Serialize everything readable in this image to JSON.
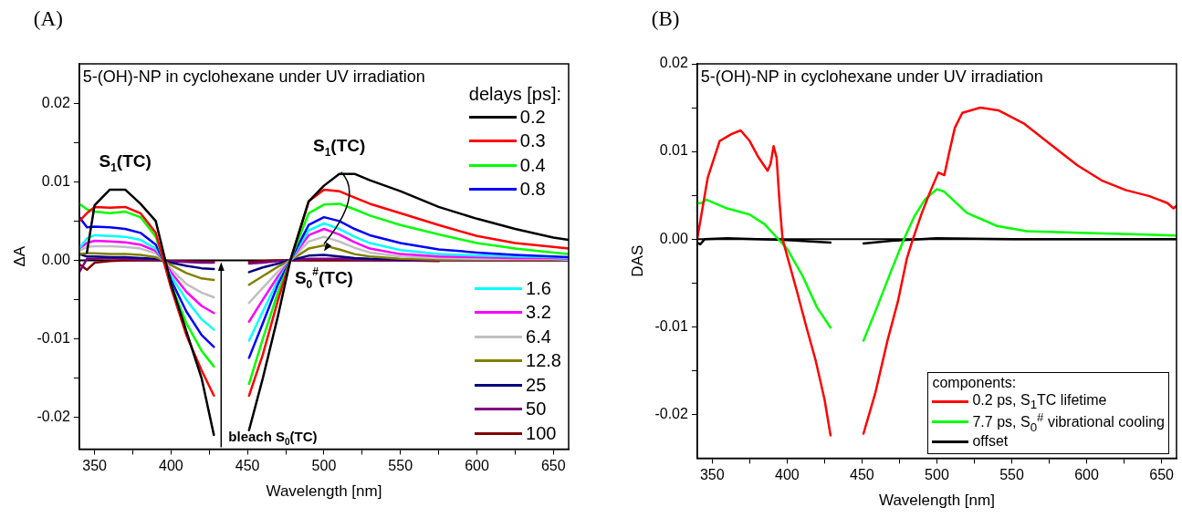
{
  "chart_data": [
    {
      "type": "line",
      "title": "(A)",
      "subtitle": "5-(OH)-NP in cyclohexane under UV irradiation",
      "xlabel": "Wavelength [nm]",
      "ylabel": "ΔA",
      "legend_title": "delays [ps]:",
      "legend": "right",
      "grid": false,
      "xlim": [
        340,
        660
      ],
      "ylim": [
        -0.024,
        0.025
      ],
      "xticks": [
        350,
        {
          "value": 375,
          "label": null
        },
        400,
        {
          "value": 425,
          "label": null
        },
        450,
        {
          "value": 475,
          "label": null
        },
        500,
        {
          "value": 525,
          "label": null
        },
        550,
        {
          "value": 575,
          "label": null
        },
        600,
        {
          "value": 625,
          "label": null
        },
        650
      ],
      "yticks": [
        -0.02,
        {
          "value": -0.015,
          "label": null
        },
        -0.01,
        {
          "value": -0.005,
          "label": null
        },
        {
          "value": 0,
          "label": "0.00"
        },
        {
          "value": 0.005,
          "label": null
        },
        0.01,
        {
          "value": 0.015,
          "label": null
        },
        0.02
      ],
      "ref_lines": [
        {
          "axis": "y",
          "value": 0,
          "color": "#000000"
        }
      ],
      "annotations": [
        {
          "text": "S$_{1}$(TC)",
          "x": 370,
          "y": 0.009
        },
        {
          "text": "S$_{1}$(TC)",
          "x": 510,
          "y": 0.011
        },
        {
          "text": "S$_{0}$$^{#}$(TC)",
          "x": 500,
          "y": 0.0007
        },
        {
          "text": "bleach S$_{0}$(TC)",
          "x": 428,
          "y": -0.0222
        }
      ],
      "x": [
        340,
        345,
        350,
        360,
        370,
        380,
        390,
        395,
        400,
        410,
        420,
        428,
        440,
        451,
        460,
        470,
        478,
        490,
        500,
        510,
        520,
        530,
        550,
        575,
        600,
        625,
        650,
        660
      ],
      "series": [
        {
          "name": "0.2",
          "color": "#000000",
          "values": [
            null,
            0.001,
            0.007,
            0.009,
            0.009,
            0.0072,
            0.005,
            0.001,
            -0.003,
            -0.009,
            -0.015,
            -0.0222,
            null,
            -0.0216,
            -0.015,
            -0.007,
            0,
            0.0075,
            0.0095,
            0.011,
            0.011,
            0.0102,
            0.0088,
            0.0068,
            0.0053,
            0.004,
            0.0029,
            0.0026
          ]
        },
        {
          "name": "0.3",
          "color": "#ff0000",
          "values": [
            0.005,
            0.006,
            0.0068,
            0.0067,
            0.0068,
            0.006,
            0.0035,
            0,
            -0.0035,
            -0.0095,
            -0.014,
            -0.0172,
            null,
            -0.0172,
            -0.012,
            -0.005,
            0,
            0.0075,
            0.009,
            0.0088,
            0.008,
            0.0072,
            0.006,
            0.0045,
            0.0031,
            0.0022,
            0.0017,
            0.0015
          ]
        },
        {
          "name": "0.4",
          "color": "#00ff00",
          "values": [
            0.0072,
            0.0065,
            0.0062,
            0.006,
            0.0062,
            0.0055,
            0.003,
            0,
            -0.003,
            -0.008,
            -0.0115,
            -0.0135,
            null,
            -0.0157,
            -0.01,
            -0.004,
            0,
            0.006,
            0.0071,
            0.0072,
            0.0065,
            0.0057,
            0.0045,
            0.0033,
            0.0022,
            0.0015,
            0.001,
            0.0008
          ]
        },
        {
          "name": "0.8",
          "color": "#0000ff",
          "values": [
            0.0055,
            0.0042,
            0.0043,
            0.0042,
            0.004,
            0.0035,
            0.002,
            0,
            -0.0025,
            -0.0065,
            -0.0095,
            -0.011,
            null,
            -0.0124,
            -0.008,
            -0.003,
            0,
            0.0045,
            0.0055,
            0.005,
            0.004,
            0.0032,
            0.0022,
            0.0014,
            0.001,
            0.0007,
            0.0005,
            0.0004
          ]
        },
        {
          "name": "1.6",
          "color": "#00ffff",
          "values": [
            0.0015,
            0.0028,
            0.0032,
            0.0031,
            0.003,
            0.0026,
            0.0015,
            0,
            -0.002,
            -0.005,
            -0.0075,
            -0.0088,
            null,
            -0.0102,
            -0.0065,
            -0.0025,
            0,
            0.0038,
            0.0047,
            0.004,
            0.003,
            0.0022,
            0.0013,
            0.0008,
            0.0006,
            0.0005,
            0.0004,
            0.0003
          ]
        },
        {
          "name": "3.2",
          "color": "#ff00ff",
          "values": [
            0.0015,
            0.0022,
            0.0025,
            0.0024,
            0.0023,
            0.002,
            0.0012,
            0,
            -0.0015,
            -0.004,
            -0.0058,
            -0.0067,
            null,
            -0.0078,
            -0.005,
            -0.002,
            0,
            0.0032,
            0.004,
            0.0033,
            0.0023,
            0.0015,
            0.0008,
            0.0005,
            0.0004,
            0.0003,
            0.0003,
            0.0002
          ]
        },
        {
          "name": "6.4",
          "color": "#c0c0c0",
          "values": [
            0.0012,
            0.0017,
            0.0018,
            0.0018,
            0.0017,
            0.0015,
            0.0009,
            0,
            -0.0011,
            -0.003,
            -0.0041,
            -0.0047,
            null,
            -0.0054,
            -0.0035,
            -0.0014,
            0,
            0.0024,
            0.003,
            0.0024,
            0.0016,
            0.001,
            0.0005,
            0.0003,
            0.0002,
            0.0002,
            0.0002,
            0.0001
          ]
        },
        {
          "name": "12.8",
          "color": "#808000",
          "values": [
            0.0008,
            0.0009,
            0.0009,
            0.0008,
            0.0008,
            0.0007,
            0.0004,
            0,
            -0.0006,
            -0.0016,
            -0.0023,
            -0.0025,
            null,
            -0.0031,
            -0.002,
            -0.0008,
            0,
            0.0015,
            0.0019,
            0.0014,
            0.0008,
            0.0005,
            0.0002,
            0.0001,
            0.0001,
            0.0001,
            0.0001,
            0.0001
          ]
        },
        {
          "name": "25",
          "color": "#000080",
          "values": [
            0.0008,
            0.0005,
            0.0005,
            0.0004,
            0.0004,
            0.0003,
            0.0002,
            0,
            -0.0003,
            -0.0007,
            -0.001,
            -0.0011,
            null,
            -0.0015,
            -0.0009,
            -0.0004,
            0,
            0.0006,
            0.0007,
            0.0005,
            0.0003,
            0.0002,
            0.0001,
            0.0001,
            null,
            null,
            null,
            null
          ]
        },
        {
          "name": "50",
          "color": "#800080",
          "values": [
            -0.0015,
            0.0002,
            0.0002,
            0.0003,
            0.0002,
            0.0001,
            0.0001,
            0,
            -0.0001,
            -0.0002,
            -0.0003,
            -0.0003,
            null,
            -0.0004,
            -0.0003,
            -0.0001,
            0,
            0.0002,
            0.0002,
            0.0002,
            0.0001,
            0.0001,
            0,
            0,
            0,
            0,
            0,
            0
          ]
        },
        {
          "name": "100",
          "color": "#800000",
          "values": [
            -0.0005,
            -0.0012,
            -0.0003,
            -0.0001,
            0,
            0,
            0,
            0,
            -0.0001,
            -0.0001,
            -0.0002,
            -0.0002,
            null,
            -0.0002,
            -0.0001,
            0,
            0,
            0,
            0,
            0,
            0,
            0,
            0,
            -0.0001,
            null,
            null,
            null,
            null
          ]
        }
      ]
    },
    {
      "type": "line",
      "title": "(B)",
      "subtitle": "5-(OH)-NP in cyclohexane under UV irradiation",
      "xlabel": "Wavelength [nm]",
      "ylabel": "DAS",
      "legend_title": "components:",
      "legend": "bottom right",
      "grid": false,
      "xlim": [
        340,
        660
      ],
      "ylim": [
        -0.025,
        0.02
      ],
      "xticks": [
        350,
        {
          "value": 375,
          "label": null
        },
        400,
        {
          "value": 425,
          "label": null
        },
        450,
        {
          "value": 475,
          "label": null
        },
        500,
        {
          "value": 525,
          "label": null
        },
        550,
        {
          "value": 575,
          "label": null
        },
        600,
        {
          "value": 625,
          "label": null
        },
        650
      ],
      "yticks": [
        -0.02,
        {
          "value": -0.015,
          "label": null
        },
        -0.01,
        {
          "value": -0.005,
          "label": null
        },
        {
          "value": 0,
          "label": "0.00"
        },
        {
          "value": 0.005,
          "label": null
        },
        0.01,
        {
          "value": 0.015,
          "label": null
        },
        0.02
      ],
      "ref_lines": [
        {
          "axis": "y",
          "value": 0,
          "color": "#000000"
        }
      ],
      "series": [
        {
          "name": "0.2 ps, S$_{1}$TC lifetime",
          "color": "#ff0000",
          "x": [
            340,
            343,
            347,
            355,
            363,
            369,
            375,
            381,
            387,
            389,
            391,
            393,
            395,
            397,
            400,
            406,
            413,
            419,
            425,
            429,
            440,
            451,
            459,
            467,
            474,
            480,
            484,
            490,
            496,
            501,
            505,
            508,
            512,
            517,
            529,
            541,
            558,
            576,
            594,
            610,
            626,
            642,
            654,
            658,
            660
          ],
          "values": [
            0,
            0.003,
            0.007,
            0.0112,
            0.012,
            0.0124,
            0.0112,
            0.0093,
            0.0078,
            0.0086,
            0.0106,
            0.0093,
            0.0041,
            0,
            -0.0019,
            -0.0056,
            -0.0101,
            -0.0138,
            -0.0183,
            -0.0224,
            null,
            -0.0222,
            -0.0175,
            -0.0116,
            -0.0071,
            -0.0022,
            0,
            0.003,
            0.0056,
            0.0076,
            0.0073,
            0.0097,
            0.0127,
            0.0144,
            0.015,
            0.0147,
            0.0132,
            0.0108,
            0.0084,
            0.0067,
            0.0056,
            0.0049,
            0.0041,
            0.0035,
            0.0038
          ]
        },
        {
          "name": "7.7 ps, S$_{0}$$^{#}$ vibrational cooling",
          "color": "#00ff00",
          "x": [
            340,
            343,
            346,
            360,
            375,
            385,
            393,
            400,
            410,
            420,
            429,
            440,
            451,
            460,
            470,
            478,
            485,
            492,
            500,
            505,
            520,
            540,
            560,
            600,
            640,
            660
          ],
          "values": [
            0.0041,
            0.0041,
            0.0045,
            0.0035,
            0.0028,
            0.0017,
            0.0002,
            -0.0011,
            -0.0041,
            -0.0078,
            -0.0101,
            null,
            -0.0116,
            -0.0078,
            -0.0034,
            0,
            0.0026,
            0.0045,
            0.0057,
            0.0054,
            0.003,
            0.0015,
            0.0009,
            0.0007,
            0.0005,
            0.0004
          ]
        },
        {
          "name": "offset",
          "color": "#000000",
          "x": [
            340,
            342,
            345,
            360,
            380,
            400,
            429,
            440,
            451,
            470,
            500,
            550,
            600,
            660
          ],
          "values": [
            -0.0004,
            -0.0006,
            0,
            0.0001,
            0,
            -0.0001,
            -0.0004,
            null,
            -0.0005,
            -0.0002,
            0.0001,
            0,
            0,
            0
          ]
        }
      ]
    }
  ]
}
